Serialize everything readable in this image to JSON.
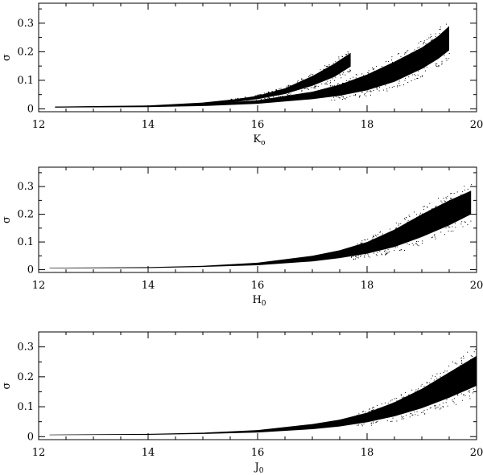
{
  "chart_data": [
    {
      "type": "scatter",
      "xlabel": "K",
      "xlabel_sub": "o",
      "ylabel": "σ",
      "xlim": [
        12,
        20
      ],
      "ylim": [
        -0.01,
        0.37
      ],
      "xticks": [
        12,
        14,
        16,
        18,
        20
      ],
      "yticks": [
        0,
        0.1,
        0.2,
        0.3
      ],
      "ytick_labels": [
        "0",
        "0.1",
        "0.2",
        "0.3"
      ],
      "series": [
        {
          "color": "#000000",
          "x": [
            12.3,
            14.0,
            15.0,
            15.6,
            16.0,
            16.5,
            17.0,
            17.4,
            17.7
          ],
          "lower": [
            0.005,
            0.008,
            0.014,
            0.024,
            0.034,
            0.052,
            0.081,
            0.112,
            0.148
          ],
          "upper": [
            0.008,
            0.012,
            0.022,
            0.034,
            0.046,
            0.072,
            0.115,
            0.158,
            0.196
          ]
        },
        {
          "color": "#000000",
          "x": [
            12.3,
            14.0,
            15.0,
            16.0,
            17.0,
            17.5,
            18.0,
            18.5,
            19.0,
            19.3,
            19.5
          ],
          "lower": [
            0.005,
            0.006,
            0.01,
            0.018,
            0.034,
            0.046,
            0.065,
            0.095,
            0.14,
            0.175,
            0.205
          ],
          "upper": [
            0.008,
            0.01,
            0.016,
            0.03,
            0.06,
            0.085,
            0.12,
            0.165,
            0.215,
            0.255,
            0.29
          ]
        }
      ]
    },
    {
      "type": "scatter",
      "xlabel": "H",
      "xlabel_sub": "0",
      "ylabel": "σ",
      "xlim": [
        12,
        20
      ],
      "ylim": [
        -0.01,
        0.37
      ],
      "xticks": [
        12,
        14,
        16,
        18,
        20
      ],
      "yticks": [
        0,
        0.1,
        0.2,
        0.3
      ],
      "ytick_labels": [
        "0",
        "0.1",
        "0.2",
        "0.3"
      ],
      "series": [
        {
          "color": "#000000",
          "x": [
            12.2,
            14.0,
            15.0,
            16.0,
            17.0,
            17.5,
            18.0,
            18.5,
            19.0,
            19.5,
            19.9
          ],
          "lower": [
            0.005,
            0.006,
            0.01,
            0.016,
            0.03,
            0.042,
            0.058,
            0.082,
            0.118,
            0.16,
            0.2
          ],
          "upper": [
            0.007,
            0.009,
            0.014,
            0.025,
            0.05,
            0.07,
            0.1,
            0.145,
            0.2,
            0.25,
            0.285
          ]
        }
      ]
    },
    {
      "type": "scatter",
      "xlabel": "J",
      "xlabel_sub": "0",
      "ylabel": "σ",
      "xlim": [
        12,
        20
      ],
      "ylim": [
        -0.01,
        0.35
      ],
      "xticks": [
        12,
        14,
        16,
        18,
        20
      ],
      "yticks": [
        0,
        0.1,
        0.2,
        0.3
      ],
      "ytick_labels": [
        "0",
        "0.1",
        "0.2",
        "0.3"
      ],
      "series": [
        {
          "color": "#000000",
          "x": [
            12.2,
            14.0,
            15.0,
            16.0,
            17.0,
            17.5,
            18.0,
            18.5,
            19.0,
            19.5,
            20.0
          ],
          "lower": [
            0.005,
            0.006,
            0.009,
            0.014,
            0.025,
            0.034,
            0.048,
            0.068,
            0.095,
            0.13,
            0.17
          ],
          "upper": [
            0.007,
            0.009,
            0.013,
            0.022,
            0.042,
            0.057,
            0.08,
            0.115,
            0.16,
            0.215,
            0.27
          ]
        }
      ]
    }
  ]
}
